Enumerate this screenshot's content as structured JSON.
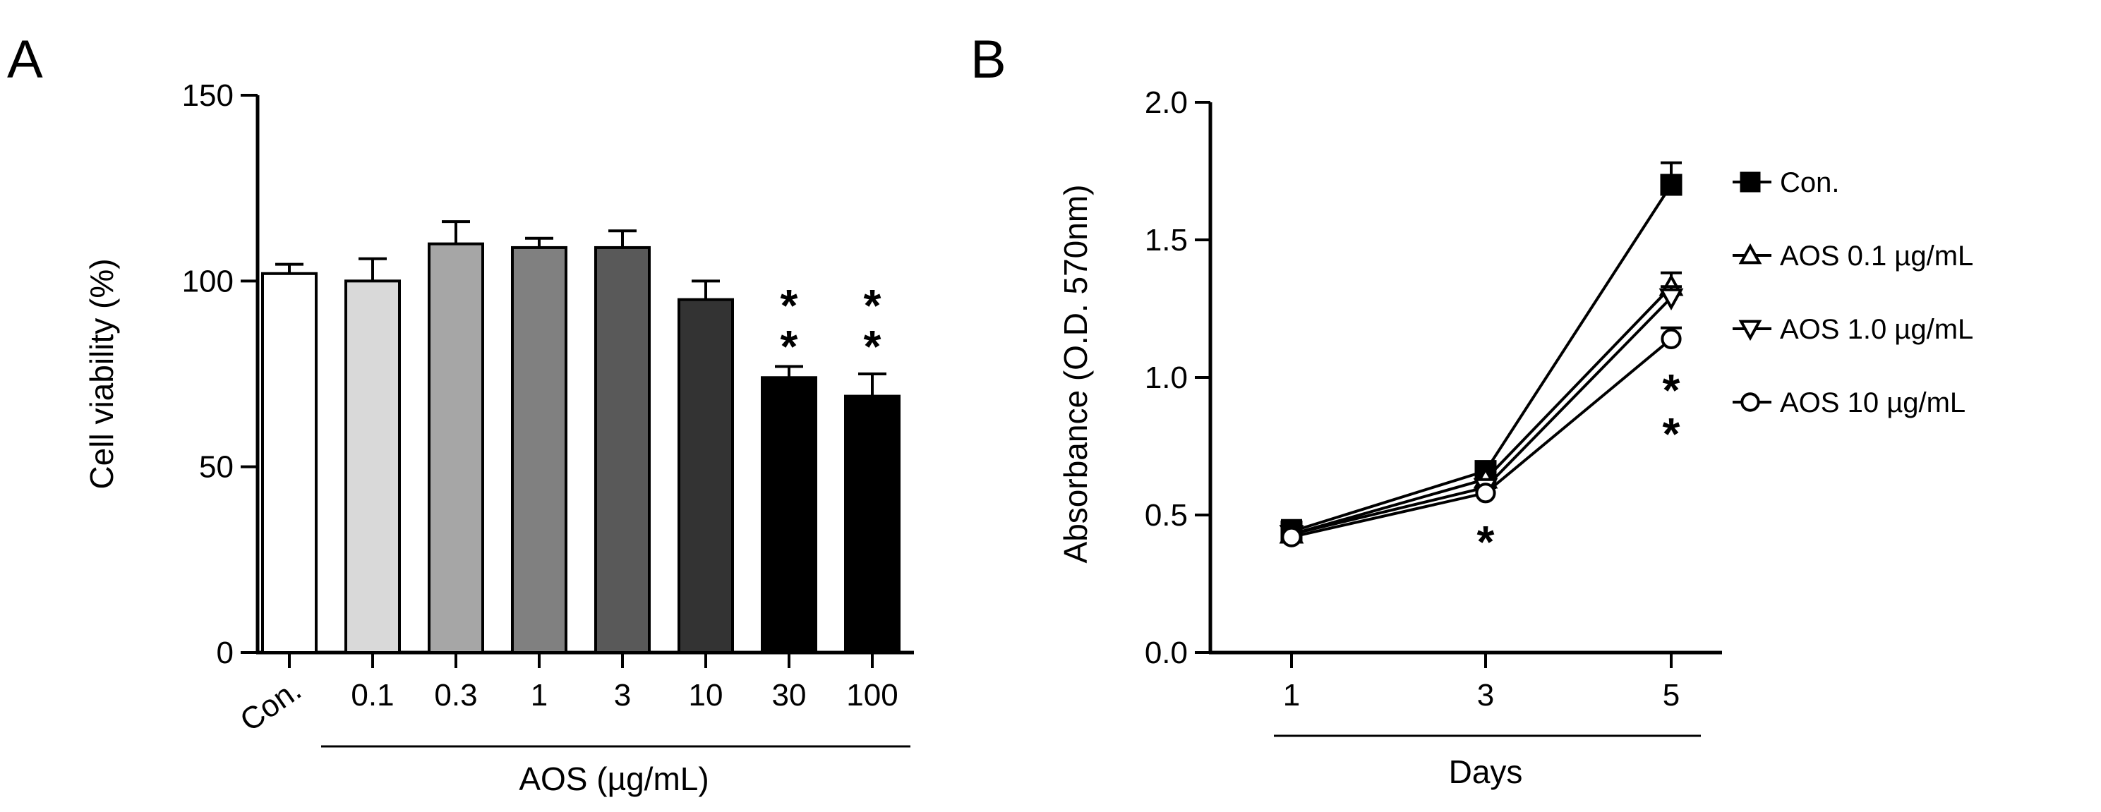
{
  "chart_data": [
    {
      "panel": "A",
      "type": "bar",
      "title": "",
      "xlabel": "AOS (µg/mL)",
      "ylabel": "Cell viability (%)",
      "ylim": [
        0,
        150
      ],
      "yticks": [
        0,
        50,
        100,
        150
      ],
      "categories": [
        "Con.",
        "0.1",
        "0.3",
        "1",
        "3",
        "10",
        "30",
        "100"
      ],
      "values": [
        102,
        100,
        110,
        109,
        109,
        95,
        74,
        69
      ],
      "errors": [
        2.5,
        6,
        6,
        2.5,
        4.5,
        5,
        3,
        6
      ],
      "bar_colors": [
        "#ffffff",
        "#d9d9d9",
        "#a6a6a6",
        "#808080",
        "#595959",
        "#333333",
        "#000000",
        "#000000"
      ],
      "significance": [
        "",
        "",
        "",
        "",
        "",
        "",
        "**",
        "**"
      ],
      "star_symbol": "*"
    },
    {
      "panel": "B",
      "type": "line",
      "title": "",
      "xlabel": "Days",
      "ylabel": "Absorbance (O.D. 570nm)",
      "ylim": [
        0,
        2.0
      ],
      "yticks": [
        "0.0",
        "0.5",
        "1.0",
        "1.5",
        "2.0"
      ],
      "x": [
        1,
        3,
        5
      ],
      "xticks": [
        "1",
        "3",
        "5"
      ],
      "series": [
        {
          "name": "Con.",
          "marker": "square-filled",
          "values": [
            0.44,
            0.66,
            1.7
          ],
          "errors": [
            0.04,
            0.02,
            0.08
          ]
        },
        {
          "name": "AOS 0.1 µg/mL",
          "marker": "triangle-up-open",
          "values": [
            0.43,
            0.63,
            1.33
          ],
          "errors": [
            0.03,
            0.02,
            0.05
          ]
        },
        {
          "name": "AOS 1.0 µg/mL",
          "marker": "triangle-down-open",
          "values": [
            0.43,
            0.6,
            1.29
          ],
          "errors": [
            0.03,
            0.02,
            0.04
          ]
        },
        {
          "name": "AOS 10 µg/mL",
          "marker": "circle-open",
          "values": [
            0.42,
            0.58,
            1.14
          ],
          "errors": [
            0.03,
            0.02,
            0.04
          ]
        }
      ],
      "annotations": [
        {
          "x": 3,
          "text": "*"
        },
        {
          "x": 5,
          "text": "**"
        }
      ],
      "legend_position": "right"
    }
  ]
}
